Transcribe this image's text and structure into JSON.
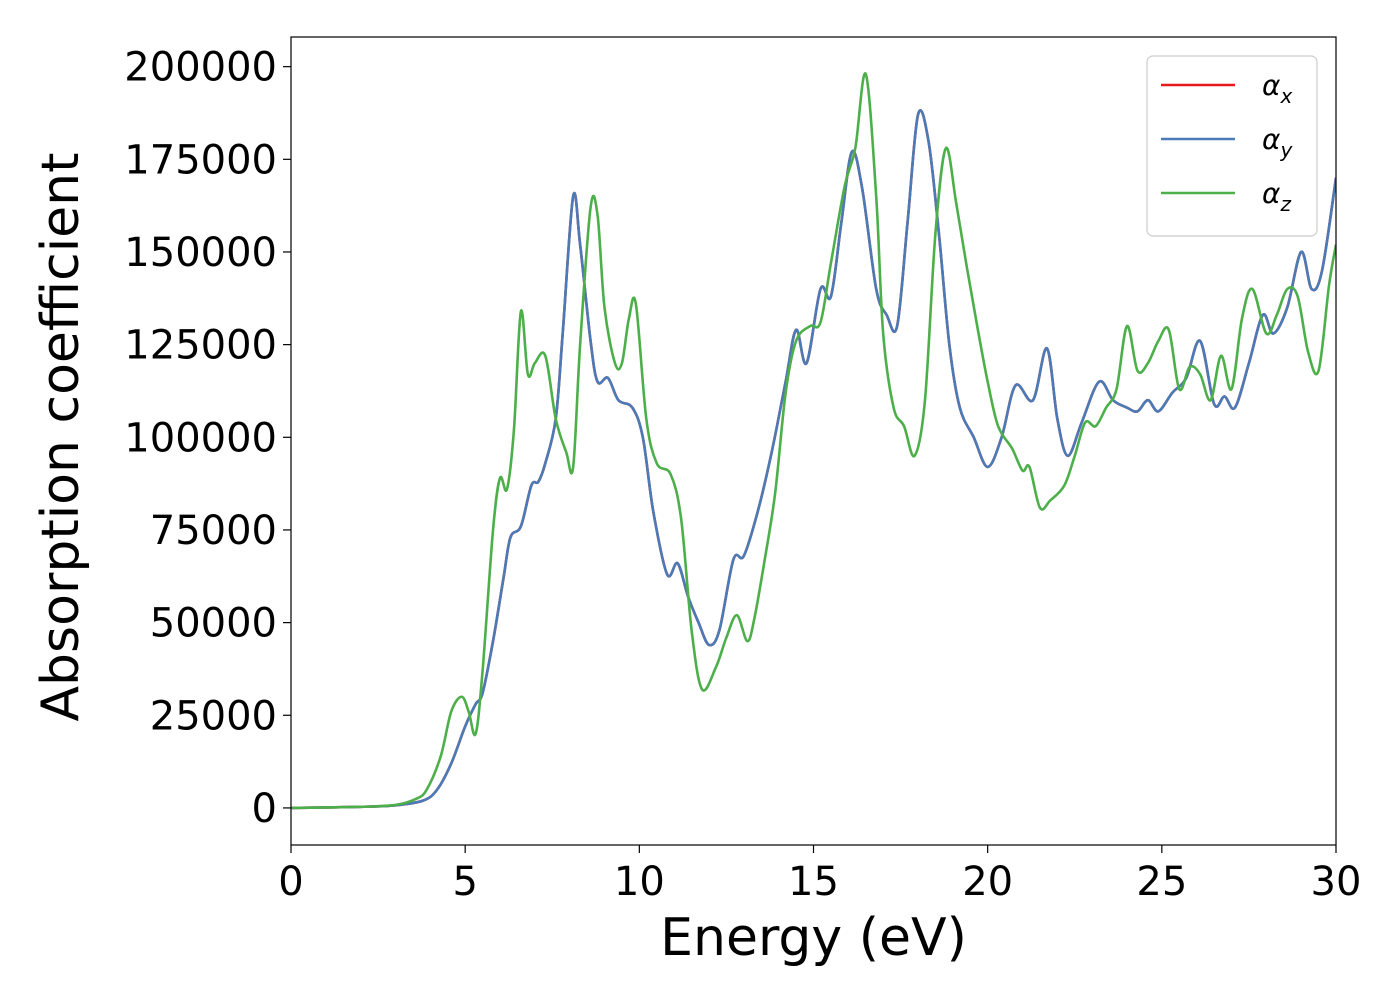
{
  "chart_data": {
    "type": "line",
    "xlabel": "Energy (eV)",
    "ylabel": "Absorption coefficient",
    "xlim": [
      0,
      30
    ],
    "ylim": [
      -10000,
      208000
    ],
    "xticks": [
      0,
      5,
      10,
      15,
      20,
      25,
      30
    ],
    "yticks": [
      0,
      25000,
      50000,
      75000,
      100000,
      125000,
      150000,
      175000,
      200000
    ],
    "legend_position": "top-right",
    "grid": false,
    "series": [
      {
        "name": "α",
        "subscript": "x",
        "color": "#e41a1c",
        "points": [
          [
            0,
            0
          ],
          [
            2,
            300
          ],
          [
            3,
            700
          ],
          [
            3.8,
            2000
          ],
          [
            4.2,
            5000
          ],
          [
            4.6,
            12000
          ],
          [
            5.0,
            22000
          ],
          [
            5.3,
            28000
          ],
          [
            5.5,
            31000
          ],
          [
            5.8,
            45000
          ],
          [
            6.1,
            62000
          ],
          [
            6.3,
            73000
          ],
          [
            6.6,
            76000
          ],
          [
            6.9,
            87000
          ],
          [
            7.1,
            88000
          ],
          [
            7.3,
            93000
          ],
          [
            7.6,
            105000
          ],
          [
            7.8,
            128000
          ],
          [
            8.1,
            165000
          ],
          [
            8.3,
            152000
          ],
          [
            8.6,
            126000
          ],
          [
            8.8,
            115000
          ],
          [
            9.1,
            116000
          ],
          [
            9.4,
            110000
          ],
          [
            9.8,
            108000
          ],
          [
            10.1,
            100000
          ],
          [
            10.4,
            80000
          ],
          [
            10.8,
            63000
          ],
          [
            11.1,
            66000
          ],
          [
            11.4,
            57000
          ],
          [
            11.7,
            50000
          ],
          [
            12.0,
            44000
          ],
          [
            12.3,
            48000
          ],
          [
            12.7,
            67000
          ],
          [
            13.0,
            68000
          ],
          [
            13.4,
            80000
          ],
          [
            13.8,
            96000
          ],
          [
            14.2,
            115000
          ],
          [
            14.5,
            129000
          ],
          [
            14.8,
            120000
          ],
          [
            15.2,
            140000
          ],
          [
            15.5,
            138000
          ],
          [
            15.8,
            158000
          ],
          [
            16.1,
            177000
          ],
          [
            16.4,
            167000
          ],
          [
            16.8,
            140000
          ],
          [
            17.1,
            133000
          ],
          [
            17.4,
            130000
          ],
          [
            17.7,
            158000
          ],
          [
            18.0,
            187000
          ],
          [
            18.3,
            180000
          ],
          [
            18.6,
            155000
          ],
          [
            18.9,
            125000
          ],
          [
            19.2,
            108000
          ],
          [
            19.6,
            100000
          ],
          [
            20.0,
            92000
          ],
          [
            20.4,
            100000
          ],
          [
            20.8,
            114000
          ],
          [
            21.3,
            110000
          ],
          [
            21.7,
            124000
          ],
          [
            22.0,
            105000
          ],
          [
            22.3,
            95000
          ],
          [
            22.7,
            104000
          ],
          [
            23.2,
            115000
          ],
          [
            23.6,
            110000
          ],
          [
            24.0,
            108000
          ],
          [
            24.3,
            107000
          ],
          [
            24.6,
            110000
          ],
          [
            24.9,
            107000
          ],
          [
            25.3,
            112000
          ],
          [
            25.7,
            116000
          ],
          [
            26.1,
            126000
          ],
          [
            26.5,
            109000
          ],
          [
            26.8,
            111000
          ],
          [
            27.1,
            108000
          ],
          [
            27.5,
            120000
          ],
          [
            27.9,
            133000
          ],
          [
            28.2,
            128000
          ],
          [
            28.6,
            135000
          ],
          [
            29.0,
            150000
          ],
          [
            29.3,
            140000
          ],
          [
            29.6,
            145000
          ],
          [
            30.0,
            170000
          ]
        ]
      },
      {
        "name": "α",
        "subscript": "y",
        "color": "#4a7bb7",
        "points": [
          [
            0,
            0
          ],
          [
            2,
            300
          ],
          [
            3,
            700
          ],
          [
            3.8,
            2000
          ],
          [
            4.2,
            5000
          ],
          [
            4.6,
            12000
          ],
          [
            5.0,
            22000
          ],
          [
            5.3,
            28000
          ],
          [
            5.5,
            31000
          ],
          [
            5.8,
            45000
          ],
          [
            6.1,
            62000
          ],
          [
            6.3,
            73000
          ],
          [
            6.6,
            76000
          ],
          [
            6.9,
            87000
          ],
          [
            7.1,
            88000
          ],
          [
            7.3,
            93000
          ],
          [
            7.6,
            105000
          ],
          [
            7.8,
            128000
          ],
          [
            8.1,
            165000
          ],
          [
            8.3,
            152000
          ],
          [
            8.6,
            126000
          ],
          [
            8.8,
            115000
          ],
          [
            9.1,
            116000
          ],
          [
            9.4,
            110000
          ],
          [
            9.8,
            108000
          ],
          [
            10.1,
            100000
          ],
          [
            10.4,
            80000
          ],
          [
            10.8,
            63000
          ],
          [
            11.1,
            66000
          ],
          [
            11.4,
            57000
          ],
          [
            11.7,
            50000
          ],
          [
            12.0,
            44000
          ],
          [
            12.3,
            48000
          ],
          [
            12.7,
            67000
          ],
          [
            13.0,
            68000
          ],
          [
            13.4,
            80000
          ],
          [
            13.8,
            96000
          ],
          [
            14.2,
            115000
          ],
          [
            14.5,
            129000
          ],
          [
            14.8,
            120000
          ],
          [
            15.2,
            140000
          ],
          [
            15.5,
            138000
          ],
          [
            15.8,
            158000
          ],
          [
            16.1,
            177000
          ],
          [
            16.4,
            167000
          ],
          [
            16.8,
            140000
          ],
          [
            17.1,
            133000
          ],
          [
            17.4,
            130000
          ],
          [
            17.7,
            158000
          ],
          [
            18.0,
            187000
          ],
          [
            18.3,
            180000
          ],
          [
            18.6,
            155000
          ],
          [
            18.9,
            125000
          ],
          [
            19.2,
            108000
          ],
          [
            19.6,
            100000
          ],
          [
            20.0,
            92000
          ],
          [
            20.4,
            100000
          ],
          [
            20.8,
            114000
          ],
          [
            21.3,
            110000
          ],
          [
            21.7,
            124000
          ],
          [
            22.0,
            105000
          ],
          [
            22.3,
            95000
          ],
          [
            22.7,
            104000
          ],
          [
            23.2,
            115000
          ],
          [
            23.6,
            110000
          ],
          [
            24.0,
            108000
          ],
          [
            24.3,
            107000
          ],
          [
            24.6,
            110000
          ],
          [
            24.9,
            107000
          ],
          [
            25.3,
            112000
          ],
          [
            25.7,
            116000
          ],
          [
            26.1,
            126000
          ],
          [
            26.5,
            109000
          ],
          [
            26.8,
            111000
          ],
          [
            27.1,
            108000
          ],
          [
            27.5,
            120000
          ],
          [
            27.9,
            133000
          ],
          [
            28.2,
            128000
          ],
          [
            28.6,
            135000
          ],
          [
            29.0,
            150000
          ],
          [
            29.3,
            140000
          ],
          [
            29.6,
            145000
          ],
          [
            30.0,
            170000
          ]
        ]
      },
      {
        "name": "α",
        "subscript": "z",
        "color": "#4daf4a",
        "points": [
          [
            0,
            0
          ],
          [
            2,
            300
          ],
          [
            3,
            800
          ],
          [
            3.6,
            2500
          ],
          [
            3.9,
            5000
          ],
          [
            4.3,
            14000
          ],
          [
            4.6,
            26000
          ],
          [
            4.9,
            30000
          ],
          [
            5.1,
            26000
          ],
          [
            5.3,
            20000
          ],
          [
            5.5,
            37000
          ],
          [
            5.8,
            75000
          ],
          [
            6.0,
            89000
          ],
          [
            6.2,
            86000
          ],
          [
            6.4,
            102000
          ],
          [
            6.6,
            134000
          ],
          [
            6.8,
            117000
          ],
          [
            7.0,
            120000
          ],
          [
            7.3,
            122000
          ],
          [
            7.6,
            105000
          ],
          [
            7.9,
            96000
          ],
          [
            8.1,
            92000
          ],
          [
            8.3,
            125000
          ],
          [
            8.6,
            162000
          ],
          [
            8.8,
            160000
          ],
          [
            9.0,
            135000
          ],
          [
            9.3,
            120000
          ],
          [
            9.5,
            120000
          ],
          [
            9.7,
            132000
          ],
          [
            9.9,
            136000
          ],
          [
            10.2,
            105000
          ],
          [
            10.5,
            93000
          ],
          [
            10.9,
            90000
          ],
          [
            11.2,
            78000
          ],
          [
            11.5,
            48000
          ],
          [
            11.8,
            32000
          ],
          [
            12.2,
            38000
          ],
          [
            12.5,
            46000
          ],
          [
            12.8,
            52000
          ],
          [
            13.1,
            45000
          ],
          [
            13.3,
            51000
          ],
          [
            13.6,
            67000
          ],
          [
            13.9,
            85000
          ],
          [
            14.2,
            112000
          ],
          [
            14.5,
            126000
          ],
          [
            14.9,
            130000
          ],
          [
            15.2,
            131000
          ],
          [
            15.5,
            147000
          ],
          [
            15.9,
            168000
          ],
          [
            16.2,
            178000
          ],
          [
            16.5,
            198000
          ],
          [
            16.8,
            165000
          ],
          [
            17.0,
            128000
          ],
          [
            17.3,
            108000
          ],
          [
            17.6,
            103000
          ],
          [
            17.9,
            95000
          ],
          [
            18.2,
            110000
          ],
          [
            18.5,
            155000
          ],
          [
            18.8,
            178000
          ],
          [
            19.1,
            163000
          ],
          [
            19.4,
            146000
          ],
          [
            19.7,
            130000
          ],
          [
            20.0,
            115000
          ],
          [
            20.3,
            103000
          ],
          [
            20.7,
            97000
          ],
          [
            21.0,
            91000
          ],
          [
            21.2,
            92000
          ],
          [
            21.5,
            81000
          ],
          [
            21.8,
            83000
          ],
          [
            22.2,
            87000
          ],
          [
            22.5,
            95000
          ],
          [
            22.8,
            104000
          ],
          [
            23.1,
            103000
          ],
          [
            23.4,
            108000
          ],
          [
            23.7,
            113000
          ],
          [
            24.0,
            130000
          ],
          [
            24.3,
            118000
          ],
          [
            24.6,
            120000
          ],
          [
            24.9,
            126000
          ],
          [
            25.2,
            129000
          ],
          [
            25.5,
            113000
          ],
          [
            25.8,
            119000
          ],
          [
            26.1,
            117000
          ],
          [
            26.4,
            110000
          ],
          [
            26.7,
            122000
          ],
          [
            27.0,
            113000
          ],
          [
            27.3,
            132000
          ],
          [
            27.6,
            140000
          ],
          [
            28.0,
            128000
          ],
          [
            28.3,
            133000
          ],
          [
            28.6,
            140000
          ],
          [
            28.9,
            138000
          ],
          [
            29.2,
            123000
          ],
          [
            29.5,
            118000
          ],
          [
            29.8,
            141000
          ],
          [
            30.0,
            152000
          ]
        ]
      }
    ]
  }
}
